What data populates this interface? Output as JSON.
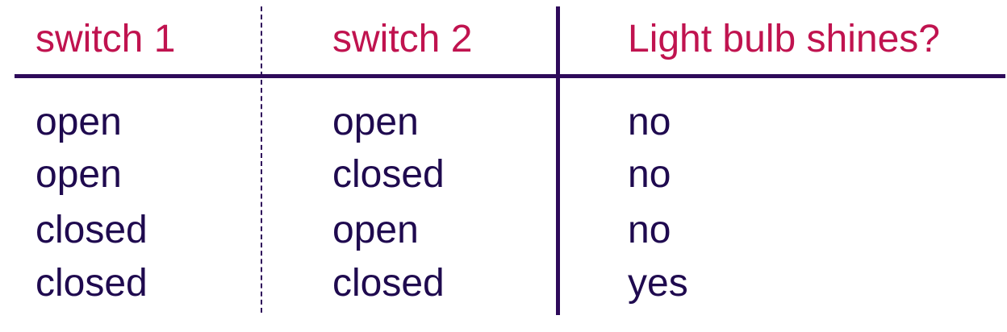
{
  "table": {
    "headers": [
      "switch 1",
      "switch 2",
      "Light bulb shines?"
    ],
    "rows": [
      [
        "open",
        "open",
        "no"
      ],
      [
        "open",
        "closed",
        "no"
      ],
      [
        "closed",
        "open",
        "no"
      ],
      [
        "closed",
        "closed",
        "yes"
      ]
    ]
  },
  "colors": {
    "header_text": "#c0134f",
    "body_text": "#1f0a4f",
    "rules": "#2e0a5a"
  }
}
